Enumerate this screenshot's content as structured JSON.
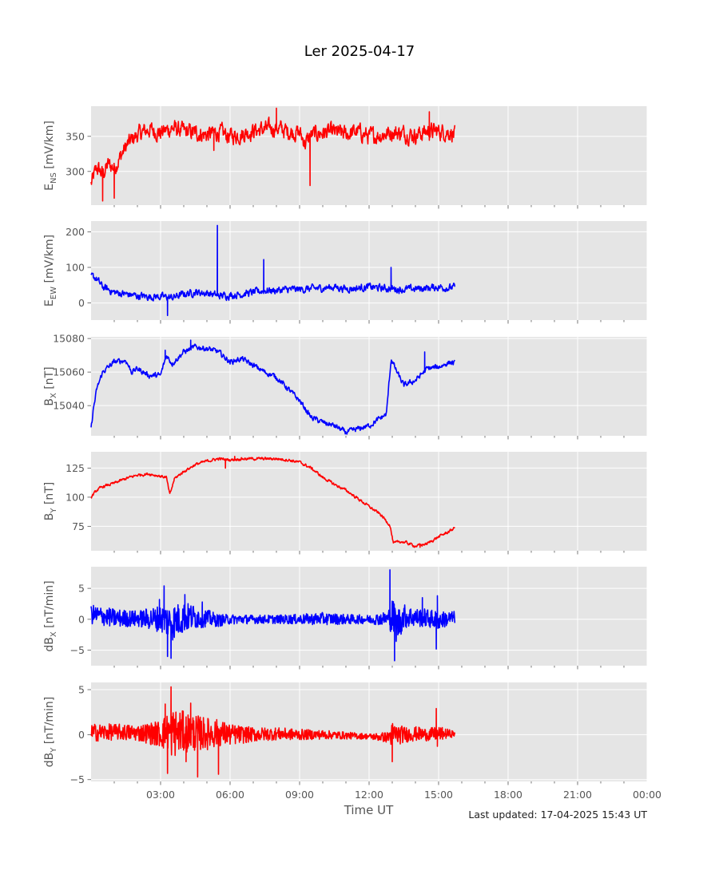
{
  "title": "Ler 2025-04-17",
  "xlabel": "Time UT",
  "footer": "Last updated: 17-04-2025 15:43 UT",
  "x_ticks": [
    "03:00",
    "06:00",
    "09:00",
    "12:00",
    "15:00",
    "18:00",
    "21:00",
    "00:00"
  ],
  "chart_data": [
    {
      "type": "line",
      "ylabel": {
        "main": "E",
        "sub": "NS",
        "unit": " [mV/km]"
      },
      "color": "#ff0000",
      "ylim": [
        252,
        393
      ],
      "yticks": [
        300,
        350
      ],
      "x_hours": [
        0.0,
        0.25,
        0.5,
        0.75,
        1.0,
        1.25,
        1.5,
        1.75,
        2.0,
        2.5,
        3.0,
        3.5,
        4.0,
        4.5,
        5.0,
        5.5,
        6.0,
        6.5,
        7.0,
        7.5,
        8.0,
        8.5,
        9.0,
        9.25,
        9.5,
        10.0,
        10.5,
        11.0,
        11.5,
        12.0,
        12.5,
        13.0,
        13.5,
        14.0,
        14.5,
        15.0,
        15.5,
        15.7
      ],
      "values": [
        282,
        305,
        296,
        310,
        305,
        320,
        335,
        345,
        352,
        360,
        355,
        362,
        357,
        355,
        352,
        356,
        350,
        353,
        358,
        360,
        362,
        357,
        355,
        340,
        352,
        355,
        356,
        353,
        357,
        350,
        352,
        356,
        354,
        352,
        357,
        357,
        356,
        352
      ],
      "noise": 30,
      "spikes": [
        [
          0.5,
          258
        ],
        [
          1.0,
          262
        ],
        [
          9.45,
          280
        ],
        [
          5.3,
          330
        ],
        [
          8.0,
          390
        ],
        [
          14.6,
          385
        ]
      ]
    },
    {
      "type": "line",
      "ylabel": {
        "main": "E",
        "sub": "EW",
        "unit": " [mV/km]"
      },
      "color": "#0000ff",
      "ylim": [
        -48,
        230
      ],
      "yticks": [
        0,
        100,
        200
      ],
      "x_hours": [
        0.0,
        0.2,
        0.5,
        1.0,
        1.5,
        2.0,
        2.5,
        3.0,
        3.5,
        4.0,
        4.5,
        5.0,
        5.5,
        6.0,
        6.5,
        7.0,
        7.5,
        8.0,
        8.5,
        9.0,
        9.5,
        10.0,
        10.5,
        11.0,
        11.5,
        12.0,
        12.5,
        13.0,
        13.5,
        14.0,
        14.5,
        15.0,
        15.5,
        15.7
      ],
      "values": [
        75,
        70,
        45,
        30,
        25,
        20,
        18,
        18,
        15,
        25,
        30,
        28,
        20,
        22,
        25,
        30,
        35,
        35,
        38,
        38,
        40,
        42,
        45,
        40,
        42,
        45,
        42,
        40,
        38,
        40,
        42,
        45,
        42,
        45
      ],
      "noise": 26,
      "spikes": [
        [
          5.45,
          218
        ],
        [
          7.45,
          122
        ],
        [
          3.3,
          -35
        ],
        [
          12.95,
          100
        ]
      ]
    },
    {
      "type": "line",
      "ylabel": {
        "main": "B",
        "sub": "X",
        "unit": " [nT]"
      },
      "color": "#0000ff",
      "ylim": [
        15022,
        15081
      ],
      "yticks": [
        15040,
        15060,
        15080
      ],
      "x_hours": [
        0.0,
        0.1,
        0.25,
        0.5,
        1.0,
        1.5,
        1.75,
        2.0,
        2.5,
        3.0,
        3.25,
        3.5,
        4.0,
        4.5,
        5.0,
        5.5,
        6.0,
        6.5,
        7.0,
        7.5,
        8.0,
        8.5,
        9.0,
        9.5,
        10.0,
        10.5,
        11.0,
        11.5,
        12.0,
        12.75,
        12.95,
        13.2,
        13.5,
        14.0,
        14.5,
        15.0,
        15.5,
        15.7
      ],
      "values": [
        15026,
        15038,
        15050,
        15060,
        15066,
        15067,
        15060,
        15062,
        15058,
        15058,
        15070,
        15065,
        15072,
        15075,
        15074,
        15072,
        15066,
        15068,
        15064,
        15060,
        15057,
        15050,
        15043,
        15033,
        15030,
        15028,
        15024,
        15026,
        15028,
        15035,
        15068,
        15060,
        15052,
        15055,
        15062,
        15063,
        15066,
        15065
      ],
      "noise": 4,
      "spikes": [
        [
          3.2,
          15073
        ],
        [
          4.3,
          15079
        ],
        [
          14.4,
          15072
        ]
      ]
    },
    {
      "type": "line",
      "ylabel": {
        "main": "B",
        "sub": "Y",
        "unit": " [nT]"
      },
      "color": "#ff0000",
      "ylim": [
        54,
        139
      ],
      "yticks": [
        75,
        100,
        125
      ],
      "x_hours": [
        0.0,
        0.25,
        0.5,
        1.0,
        1.5,
        2.0,
        2.5,
        3.0,
        3.25,
        3.4,
        3.6,
        4.0,
        4.5,
        5.0,
        5.5,
        6.0,
        6.5,
        7.0,
        7.5,
        8.0,
        8.5,
        9.0,
        9.5,
        10.0,
        10.5,
        11.0,
        11.5,
        12.0,
        12.5,
        12.9,
        13.05,
        13.3,
        13.6,
        14.0,
        14.5,
        15.0,
        15.5,
        15.7
      ],
      "values": [
        100,
        106,
        109,
        112,
        116,
        119,
        120,
        118,
        117,
        102,
        116,
        122,
        128,
        131,
        133,
        132,
        133,
        133,
        133,
        133,
        132,
        130,
        125,
        117,
        111,
        106,
        99,
        92,
        85,
        76,
        60,
        62,
        61,
        58,
        60,
        66,
        71,
        74
      ],
      "noise": 3,
      "spikes": [
        [
          5.8,
          125
        ],
        [
          6.2,
          135
        ],
        [
          14.2,
          57
        ]
      ]
    },
    {
      "type": "line",
      "ylabel": {
        "main": "dB",
        "sub": "X",
        "unit": " [nT/min]"
      },
      "color": "#0000ff",
      "ylim": [
        -7.5,
        8.5
      ],
      "yticks": [
        -5,
        0,
        5
      ],
      "x_hours": [
        0.0,
        1.0,
        2.0,
        3.0,
        3.5,
        4.0,
        4.5,
        5.0,
        5.5,
        6.0,
        7.0,
        8.0,
        9.0,
        10.0,
        11.0,
        12.0,
        12.8,
        13.0,
        13.2,
        13.5,
        14.0,
        14.5,
        15.0,
        15.7
      ],
      "values": [
        0.8,
        0.2,
        0.1,
        0.1,
        -0.5,
        0.3,
        0.4,
        0.2,
        -0.2,
        0.0,
        0.0,
        0.0,
        0.0,
        0.1,
        0.0,
        0.0,
        0.1,
        0.5,
        -1.0,
        0.5,
        0.3,
        0.2,
        -0.2,
        0.3
      ],
      "amp": [
        1.6,
        1.5,
        1.3,
        2.2,
        3.0,
        2.5,
        2.0,
        1.4,
        1.0,
        0.8,
        0.7,
        0.7,
        0.8,
        1.0,
        0.8,
        0.7,
        1.2,
        3.0,
        3.0,
        2.0,
        1.5,
        1.5,
        1.5,
        1.0
      ],
      "spikes": [
        [
          3.15,
          5.4
        ],
        [
          3.3,
          -6.0
        ],
        [
          3.45,
          -6.3
        ],
        [
          2.95,
          3.2
        ],
        [
          4.05,
          4.0
        ],
        [
          4.8,
          2.8
        ],
        [
          12.9,
          8.0
        ],
        [
          13.1,
          -6.7
        ],
        [
          14.9,
          -4.8
        ],
        [
          14.95,
          3.8
        ],
        [
          14.3,
          3.5
        ]
      ]
    },
    {
      "type": "line",
      "ylabel": {
        "main": "dB",
        "sub": "Y",
        "unit": " [nT/min]"
      },
      "color": "#ff0000",
      "ylim": [
        -5.2,
        5.8
      ],
      "yticks": [
        -5,
        0,
        5
      ],
      "x_hours": [
        0.0,
        1.0,
        2.0,
        3.0,
        3.5,
        4.0,
        4.5,
        5.0,
        5.5,
        6.0,
        7.0,
        8.0,
        9.0,
        10.0,
        11.0,
        12.0,
        12.8,
        13.0,
        13.5,
        14.0,
        14.5,
        15.0,
        15.7
      ],
      "values": [
        0.2,
        0.3,
        0.2,
        0.1,
        0.2,
        0.3,
        0.2,
        0.1,
        0.2,
        0.0,
        0.0,
        0.1,
        0.0,
        0.0,
        -0.1,
        -0.2,
        -0.3,
        0.0,
        0.0,
        0.1,
        0.0,
        0.1,
        0.1
      ],
      "amp": [
        1.0,
        0.9,
        0.9,
        1.5,
        2.8,
        2.3,
        2.0,
        1.8,
        1.5,
        1.2,
        0.8,
        0.7,
        0.6,
        0.5,
        0.4,
        0.3,
        0.6,
        1.4,
        0.9,
        0.8,
        0.7,
        0.8,
        0.3
      ],
      "spikes": [
        [
          3.3,
          -4.3
        ],
        [
          3.45,
          5.3
        ],
        [
          3.2,
          3.4
        ],
        [
          4.3,
          3.5
        ],
        [
          4.6,
          -4.7
        ],
        [
          5.5,
          -4.4
        ],
        [
          4.1,
          -3.0
        ],
        [
          13.0,
          -3.0
        ],
        [
          14.9,
          2.9
        ],
        [
          14.95,
          -1.3
        ]
      ]
    }
  ]
}
